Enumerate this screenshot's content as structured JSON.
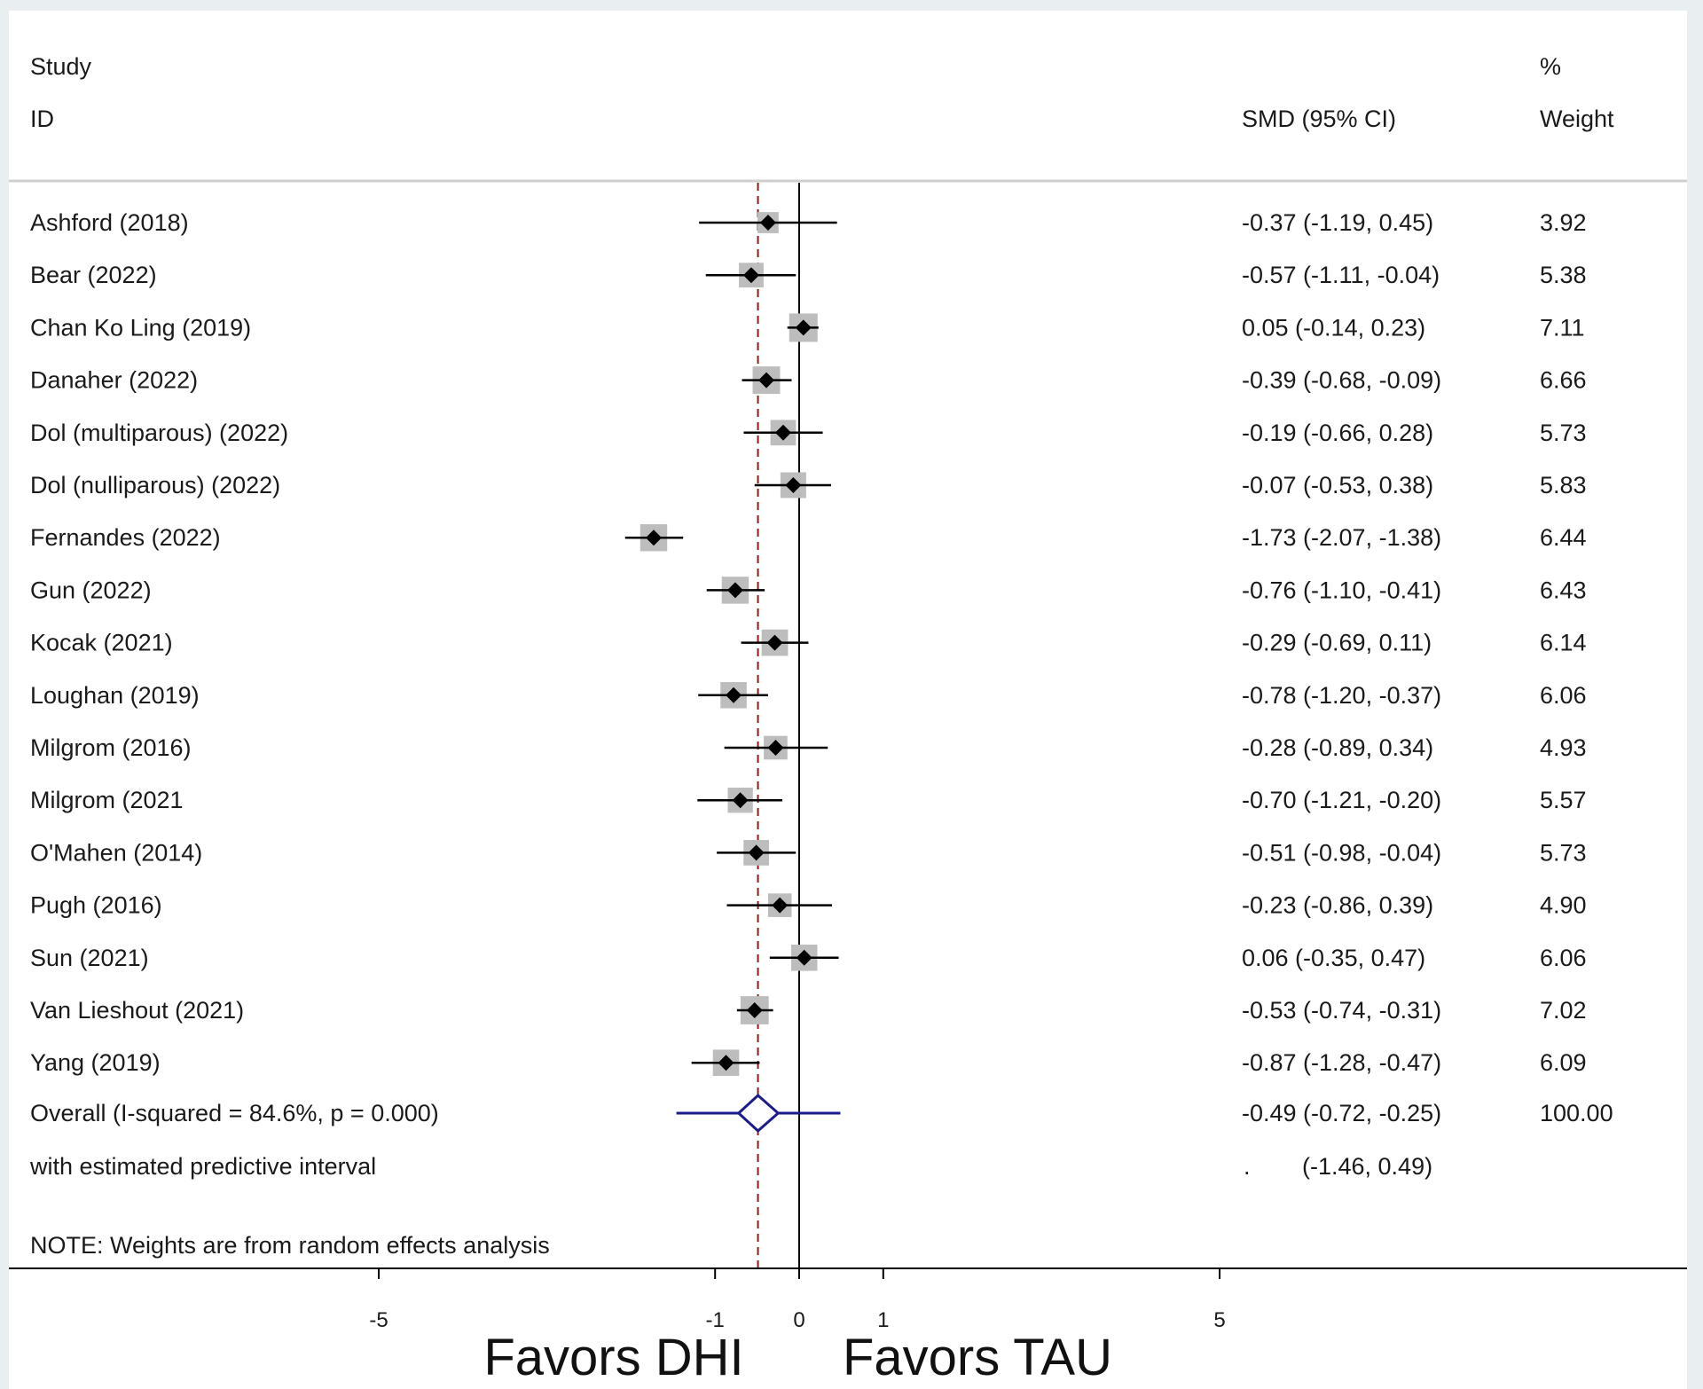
{
  "chart_data": {
    "type": "forest",
    "headers": {
      "study": "Study",
      "id": "ID",
      "smd": "SMD (95% CI)",
      "pct": "%",
      "weight": "Weight"
    },
    "studies": [
      {
        "name": "Ashford (2018)",
        "smd": -0.37,
        "lo": -1.19,
        "hi": 0.45,
        "ci_text": "-0.37 (-1.19, 0.45)",
        "weight": "3.92"
      },
      {
        "name": "Bear (2022)",
        "smd": -0.57,
        "lo": -1.11,
        "hi": -0.04,
        "ci_text": "-0.57 (-1.11, -0.04)",
        "weight": "5.38"
      },
      {
        "name": "Chan Ko Ling (2019)",
        "smd": 0.05,
        "lo": -0.14,
        "hi": 0.23,
        "ci_text": "0.05 (-0.14, 0.23)",
        "weight": "7.11"
      },
      {
        "name": "Danaher (2022)",
        "smd": -0.39,
        "lo": -0.68,
        "hi": -0.09,
        "ci_text": "-0.39 (-0.68, -0.09)",
        "weight": "6.66"
      },
      {
        "name": "Dol (multiparous) (2022)",
        "smd": -0.19,
        "lo": -0.66,
        "hi": 0.28,
        "ci_text": "-0.19 (-0.66, 0.28)",
        "weight": "5.73"
      },
      {
        "name": "Dol (nulliparous) (2022)",
        "smd": -0.07,
        "lo": -0.53,
        "hi": 0.38,
        "ci_text": "-0.07 (-0.53, 0.38)",
        "weight": "5.83"
      },
      {
        "name": "Fernandes (2022)",
        "smd": -1.73,
        "lo": -2.07,
        "hi": -1.38,
        "ci_text": "-1.73 (-2.07, -1.38)",
        "weight": "6.44"
      },
      {
        "name": "Gun (2022)",
        "smd": -0.76,
        "lo": -1.1,
        "hi": -0.41,
        "ci_text": "-0.76 (-1.10, -0.41)",
        "weight": "6.43"
      },
      {
        "name": "Kocak (2021)",
        "smd": -0.29,
        "lo": -0.69,
        "hi": 0.11,
        "ci_text": "-0.29 (-0.69, 0.11)",
        "weight": "6.14"
      },
      {
        "name": "Loughan (2019)",
        "smd": -0.78,
        "lo": -1.2,
        "hi": -0.37,
        "ci_text": "-0.78 (-1.20, -0.37)",
        "weight": "6.06"
      },
      {
        "name": "Milgrom (2016)",
        "smd": -0.28,
        "lo": -0.89,
        "hi": 0.34,
        "ci_text": "-0.28 (-0.89, 0.34)",
        "weight": "4.93"
      },
      {
        "name": "Milgrom (2021",
        "smd": -0.7,
        "lo": -1.21,
        "hi": -0.2,
        "ci_text": "-0.70 (-1.21, -0.20)",
        "weight": "5.57"
      },
      {
        "name": "O'Mahen (2014)",
        "smd": -0.51,
        "lo": -0.98,
        "hi": -0.04,
        "ci_text": "-0.51 (-0.98, -0.04)",
        "weight": "5.73"
      },
      {
        "name": "Pugh (2016)",
        "smd": -0.23,
        "lo": -0.86,
        "hi": 0.39,
        "ci_text": "-0.23 (-0.86, 0.39)",
        "weight": "4.90"
      },
      {
        "name": "Sun (2021)",
        "smd": 0.06,
        "lo": -0.35,
        "hi": 0.47,
        "ci_text": "0.06 (-0.35, 0.47)",
        "weight": "6.06"
      },
      {
        "name": "Van Lieshout (2021)",
        "smd": -0.53,
        "lo": -0.74,
        "hi": -0.31,
        "ci_text": "-0.53 (-0.74, -0.31)",
        "weight": "7.02"
      },
      {
        "name": "Yang (2019)",
        "smd": -0.87,
        "lo": -1.28,
        "hi": -0.47,
        "ci_text": "-0.87 (-1.28, -0.47)",
        "weight": "6.09"
      }
    ],
    "overall": {
      "label": "Overall  (I-squared = 84.6%, p = 0.000)",
      "smd": -0.49,
      "lo": -0.72,
      "hi": -0.25,
      "ci_text": "-0.49 (-0.72, -0.25)",
      "weight": "100.00"
    },
    "predictive": {
      "label": "with estimated predictive interval",
      "lo": -1.46,
      "hi": 0.49,
      "dot": ".",
      "ci_text": "(-1.46, 0.49)"
    },
    "note": "NOTE: Weights are from random effects analysis",
    "x_ticks": [
      -5,
      -1,
      0,
      1,
      5
    ],
    "xlim": [
      -9.1,
      9.3
    ],
    "xlabel_left": "Favors DHI",
    "xlabel_right": "Favors TAU",
    "colors": {
      "ci": "#000000",
      "square": "#bdbdbd",
      "overall": "#1c1c8c",
      "ref_dashed": "#8b1a1a",
      "axis": "#000000"
    }
  }
}
